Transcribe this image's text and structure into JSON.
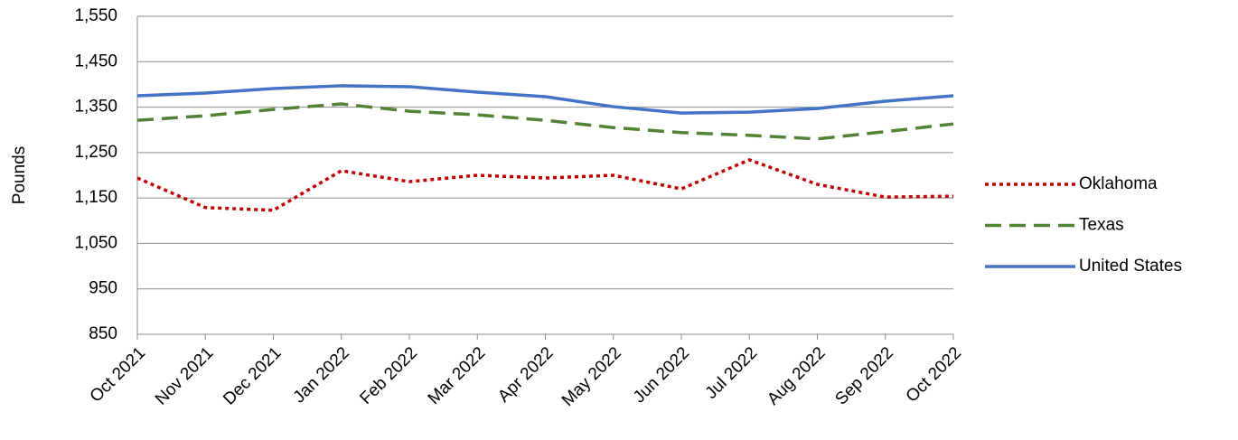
{
  "chart_data": {
    "type": "line",
    "y_label": "Pounds",
    "categories": [
      "Oct 2021",
      "Nov 2021",
      "Dec 2021",
      "Jan 2022",
      "Feb 2022",
      "Mar 2022",
      "Apr 2022",
      "May 2022",
      "Jun 2022",
      "Jul 2022",
      "Aug 2022",
      "Sep 2022",
      "Oct 2022"
    ],
    "series": [
      {
        "name": "Oklahoma",
        "color": "#c00000",
        "dash": "dotted",
        "values": [
          1194,
          1129,
          1123,
          1210,
          1186,
          1200,
          1194,
          1200,
          1170,
          1234,
          1180,
          1152,
          1154
        ]
      },
      {
        "name": "Texas",
        "color": "#548235",
        "dash": "dashed",
        "values": [
          1321,
          1331,
          1345,
          1357,
          1341,
          1333,
          1321,
          1305,
          1294,
          1288,
          1280,
          1296,
          1313
        ]
      },
      {
        "name": "United States",
        "color": "#4472c4",
        "dash": "solid",
        "values": [
          1375,
          1381,
          1391,
          1397,
          1395,
          1383,
          1373,
          1351,
          1337,
          1339,
          1347,
          1363,
          1375
        ]
      }
    ],
    "ylim": [
      850,
      1550
    ],
    "yticks": [
      850,
      950,
      {
        "value": 1050,
        "label": "1,050"
      },
      {
        "value": 1150,
        "label": "1,150"
      },
      {
        "value": 1250,
        "label": "1,250"
      },
      {
        "value": 1350,
        "label": "1,350"
      },
      {
        "value": 1450,
        "label": "1,450"
      },
      {
        "value": 1550,
        "label": "1,550"
      }
    ],
    "grid": true,
    "legend": "right"
  }
}
